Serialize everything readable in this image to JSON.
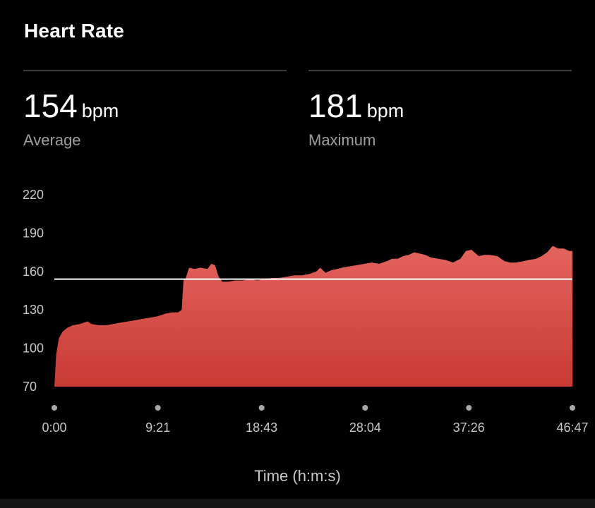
{
  "header": {
    "title": "Heart Rate"
  },
  "stats": {
    "average": {
      "value": "154",
      "unit": "bpm",
      "label": "Average"
    },
    "maximum": {
      "value": "181",
      "unit": "bpm",
      "label": "Maximum"
    }
  },
  "colors": {
    "area_top": "#e3645e",
    "area_bottom": "#c93a33",
    "average_line": "#ffffff",
    "tick_dot": "#a8a8a8"
  },
  "chart_data": {
    "type": "area",
    "title": "",
    "xlabel": "Time (h:m:s)",
    "ylabel": "",
    "ylim": [
      70,
      220
    ],
    "yticks": [
      220,
      190,
      160,
      130,
      100,
      70
    ],
    "xlim_seconds": [
      0,
      2807
    ],
    "xticks": [
      {
        "label": "0:00",
        "seconds": 0
      },
      {
        "label": "9:21",
        "seconds": 561
      },
      {
        "label": "18:43",
        "seconds": 1123
      },
      {
        "label": "28:04",
        "seconds": 1684
      },
      {
        "label": "37:26",
        "seconds": 2246
      },
      {
        "label": "46:47",
        "seconds": 2807
      }
    ],
    "average_line": 154,
    "series": [
      {
        "x_seconds": [
          0,
          10,
          25,
          45,
          70,
          100,
          140,
          180,
          200,
          240,
          280,
          320,
          360,
          400,
          440,
          480,
          520,
          560,
          600,
          640,
          670,
          690,
          700,
          712,
          730,
          760,
          790,
          830,
          850,
          870,
          890,
          910,
          940,
          980,
          1020,
          1060,
          1100,
          1140,
          1180,
          1220,
          1260,
          1300,
          1340,
          1380,
          1420,
          1440,
          1470,
          1500,
          1530,
          1560,
          1600,
          1640,
          1680,
          1720,
          1760,
          1800,
          1830,
          1860,
          1890,
          1920,
          1950,
          1980,
          2010,
          2040,
          2080,
          2120,
          2160,
          2200,
          2230,
          2260,
          2300,
          2330,
          2360,
          2400,
          2440,
          2470,
          2500,
          2540,
          2570,
          2610,
          2640,
          2670,
          2700,
          2730,
          2760,
          2790,
          2807
        ],
        "y": [
          70,
          95,
          108,
          113,
          116,
          118,
          119,
          121,
          119,
          118,
          118,
          119,
          120,
          121,
          122,
          123,
          124,
          125,
          127,
          128,
          128,
          130,
          153,
          155,
          163,
          162,
          163,
          162,
          166,
          165,
          156,
          152,
          152,
          153,
          153,
          154,
          153,
          154,
          155,
          155,
          156,
          157,
          157,
          158,
          160,
          163,
          159,
          161,
          162,
          163,
          164,
          165,
          166,
          167,
          166,
          168,
          170,
          170,
          172,
          173,
          175,
          174,
          173,
          171,
          170,
          169,
          167,
          170,
          176,
          177,
          172,
          173,
          173,
          172,
          168,
          167,
          167,
          168,
          169,
          170,
          172,
          175,
          180,
          178,
          178,
          176,
          176
        ]
      }
    ]
  }
}
